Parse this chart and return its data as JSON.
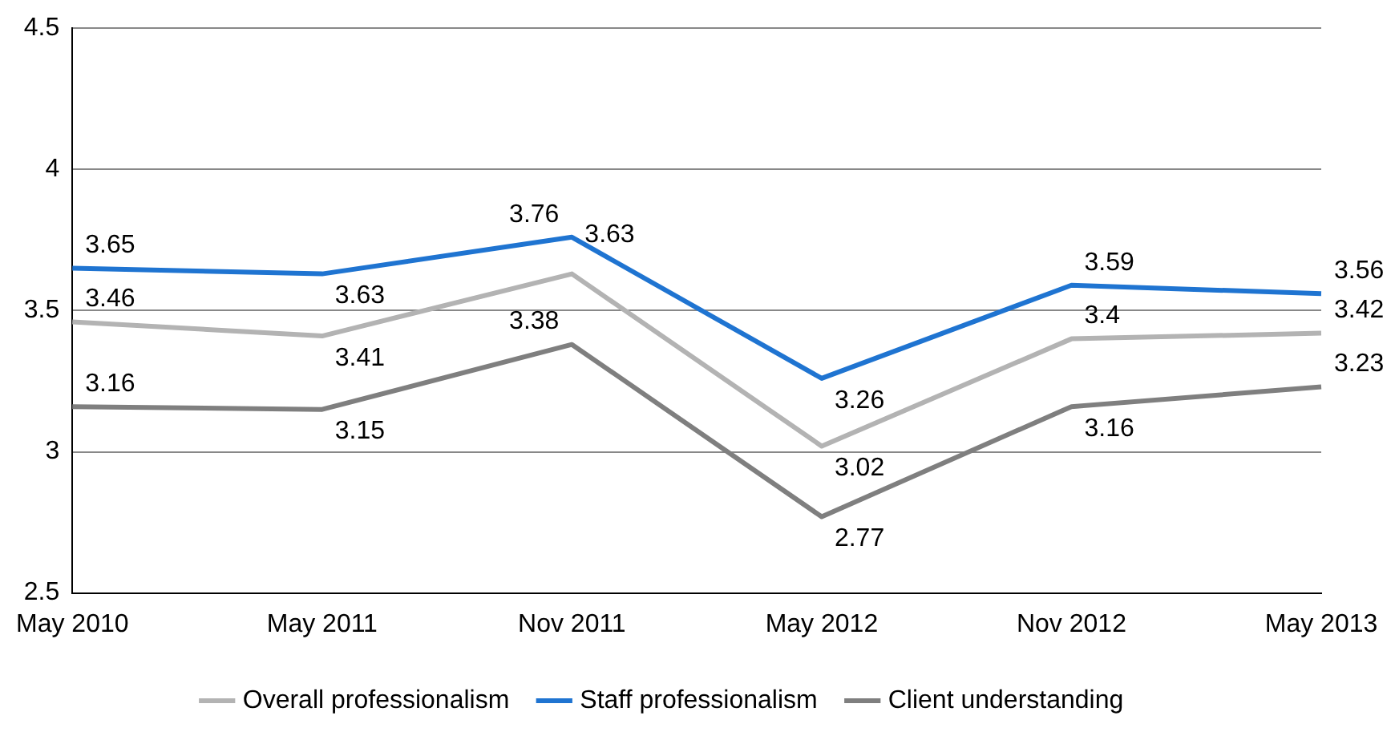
{
  "chart_data": {
    "type": "line",
    "categories": [
      "May 2010",
      "May 2011",
      "Nov 2011",
      "May 2012",
      "Nov 2012",
      "May 2013"
    ],
    "series": [
      {
        "name": "Overall professionalism",
        "color": "#b3b3b3",
        "values": [
          3.46,
          3.41,
          3.63,
          3.02,
          3.4,
          3.42
        ]
      },
      {
        "name": "Staff professionalism",
        "color": "#1f74d1",
        "values": [
          3.65,
          3.63,
          3.76,
          3.26,
          3.59,
          3.56
        ]
      },
      {
        "name": "Client understanding",
        "color": "#7f7f7f",
        "values": [
          3.16,
          3.15,
          3.38,
          2.77,
          3.16,
          3.23
        ]
      }
    ],
    "ylim": [
      2.5,
      4.5
    ],
    "yticks": [
      2.5,
      3,
      3.5,
      4,
      4.5
    ],
    "grid": "y",
    "legend": "bottom",
    "marker": "none",
    "line_style": "solid",
    "data_labels": true
  }
}
